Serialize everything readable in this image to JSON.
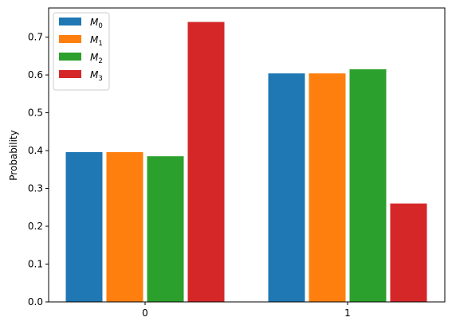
{
  "chart_data": {
    "type": "bar",
    "categories": [
      "0",
      "1"
    ],
    "series": [
      {
        "name": "M",
        "subscript": "0",
        "color": "#1f77b4",
        "values": [
          0.396,
          0.604
        ]
      },
      {
        "name": "M",
        "subscript": "1",
        "color": "#ff7f0e",
        "values": [
          0.396,
          0.604
        ]
      },
      {
        "name": "M",
        "subscript": "2",
        "color": "#2ca02c",
        "values": [
          0.385,
          0.615
        ]
      },
      {
        "name": "M",
        "subscript": "3",
        "color": "#d62728",
        "values": [
          0.74,
          0.26
        ]
      }
    ],
    "xlabel": "",
    "ylabel": "Probability",
    "ylim": [
      0,
      0.777
    ],
    "yticks": [
      "0.0",
      "0.1",
      "0.2",
      "0.3",
      "0.4",
      "0.5",
      "0.6",
      "0.7"
    ],
    "grid": false,
    "legend_position": "top-left"
  }
}
